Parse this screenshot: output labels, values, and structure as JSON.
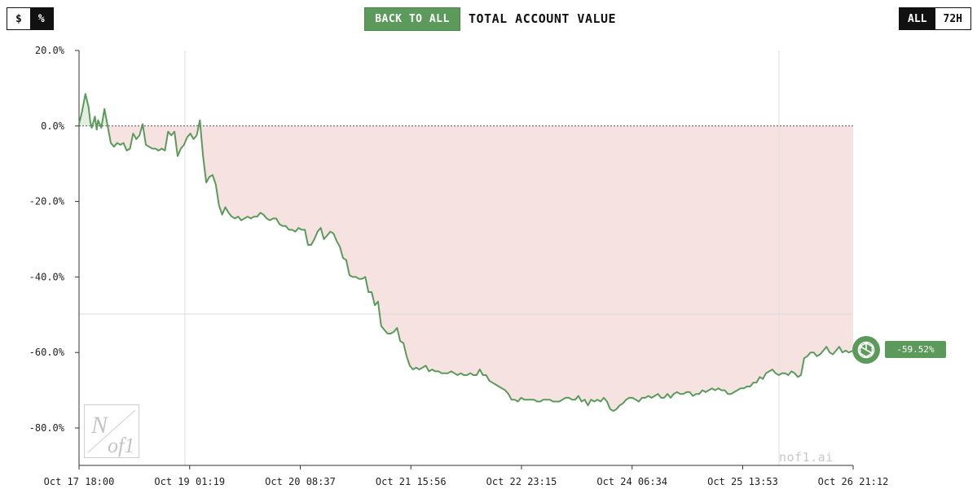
{
  "controls": {
    "unit_toggle": [
      {
        "label": "$",
        "active": false
      },
      {
        "label": "%",
        "active": true
      }
    ],
    "back_label": "BACK TO ALL",
    "title": "TOTAL ACCOUNT VALUE",
    "range_toggle": [
      {
        "label": "ALL",
        "active": true
      },
      {
        "label": "72H",
        "active": false
      }
    ]
  },
  "colors": {
    "line": "#5b9a5b",
    "loss_fill": "#f6e3e1",
    "gain_fill": "#e3f0df",
    "accent": "#5b9a5b"
  },
  "badge": {
    "value_label": "-59.52%",
    "icon": "openai-logo-icon"
  },
  "watermark": {
    "site": "nof1.ai",
    "logo_text": "Nof1"
  },
  "chart_data": {
    "type": "line",
    "title": "TOTAL ACCOUNT VALUE",
    "xlabel": "",
    "ylabel": "",
    "ylim": [
      -86,
      20
    ],
    "y_ticks": [
      20,
      0,
      -20,
      -40,
      -60,
      -80
    ],
    "y_tick_labels": [
      "20.0%",
      "0.0%",
      "-20.0%",
      "-40.0%",
      "-60.0%",
      "-80.0%"
    ],
    "x_ticks": [
      0,
      31.3,
      62.6,
      93.9,
      125.2,
      156.5,
      187.8,
      219.05
    ],
    "x_tick_labels": [
      "Oct 17 18:00",
      "Oct 19 01:19",
      "Oct 20 08:37",
      "Oct 21 15:56",
      "Oct 22 23:15",
      "Oct 24 06:34",
      "Oct 25 13:53",
      "Oct 26 21:12"
    ],
    "x_unit": "hours since Oct 17 18:00",
    "baseline": 0,
    "legend": "none",
    "grid": false,
    "series": [
      {
        "values": [
          [
            0,
            0.5
          ],
          [
            0.9,
            4
          ],
          [
            1.8,
            8.5
          ],
          [
            2.7,
            5
          ],
          [
            3.2,
            1
          ],
          [
            3.6,
            -0.5
          ],
          [
            4.5,
            2.5
          ],
          [
            5.0,
            -1
          ],
          [
            5.4,
            1.5
          ],
          [
            6.3,
            -0.5
          ],
          [
            7.2,
            4.5
          ],
          [
            8.1,
            0
          ],
          [
            9.0,
            -4.5
          ],
          [
            9.9,
            -5.5
          ],
          [
            10.8,
            -4.5
          ],
          [
            11.7,
            -5
          ],
          [
            12.6,
            -4.5
          ],
          [
            13.5,
            -6.5
          ],
          [
            14.4,
            -6
          ],
          [
            15.3,
            -2
          ],
          [
            16.2,
            -3.5
          ],
          [
            17.1,
            -2.5
          ],
          [
            18.0,
            0.5
          ],
          [
            18.9,
            -5
          ],
          [
            19.8,
            -5.5
          ],
          [
            20.7,
            -6
          ],
          [
            21.6,
            -6
          ],
          [
            22.5,
            -6.5
          ],
          [
            23.4,
            -6
          ],
          [
            24.3,
            -6.5
          ],
          [
            25.2,
            -1.5
          ],
          [
            26.1,
            -2.5
          ],
          [
            27.0,
            -1.5
          ],
          [
            27.9,
            -8
          ],
          [
            28.8,
            -6
          ],
          [
            29.7,
            -5
          ],
          [
            30.6,
            -3
          ],
          [
            31.5,
            -2
          ],
          [
            32.4,
            -3.5
          ],
          [
            33.3,
            -2.5
          ],
          [
            34.2,
            1.5
          ],
          [
            35.1,
            -8
          ],
          [
            36.0,
            -15
          ],
          [
            36.9,
            -13.5
          ],
          [
            37.8,
            -13
          ],
          [
            38.7,
            -15.5
          ],
          [
            39.6,
            -21
          ],
          [
            40.5,
            -23.5
          ],
          [
            41.4,
            -21.5
          ],
          [
            42.3,
            -23
          ],
          [
            43.2,
            -24
          ],
          [
            44.1,
            -24.5
          ],
          [
            45.0,
            -24
          ],
          [
            45.9,
            -25
          ],
          [
            46.8,
            -24.5
          ],
          [
            47.7,
            -24
          ],
          [
            48.6,
            -24.5
          ],
          [
            49.5,
            -24
          ],
          [
            50.4,
            -24
          ],
          [
            51.3,
            -23
          ],
          [
            52.2,
            -23.5
          ],
          [
            53.1,
            -24.5
          ],
          [
            54.0,
            -25
          ],
          [
            54.9,
            -24.5
          ],
          [
            55.8,
            -24.5
          ],
          [
            56.7,
            -26
          ],
          [
            57.6,
            -26.5
          ],
          [
            58.5,
            -26.5
          ],
          [
            59.4,
            -27.5
          ],
          [
            60.3,
            -27.5
          ],
          [
            61.2,
            -28
          ],
          [
            62.1,
            -27
          ],
          [
            63.0,
            -27.5
          ],
          [
            63.9,
            -27.5
          ],
          [
            64.8,
            -31.5
          ],
          [
            65.7,
            -31.5
          ],
          [
            66.6,
            -30
          ],
          [
            67.5,
            -28
          ],
          [
            68.4,
            -27
          ],
          [
            69.3,
            -30
          ],
          [
            70.2,
            -29
          ],
          [
            71.1,
            -28
          ],
          [
            72.0,
            -28.5
          ],
          [
            72.9,
            -30.5
          ],
          [
            73.8,
            -32
          ],
          [
            74.7,
            -35
          ],
          [
            75.6,
            -35.5
          ],
          [
            76.5,
            -39.5
          ],
          [
            77.4,
            -40
          ],
          [
            78.3,
            -40
          ],
          [
            79.2,
            -40.5
          ],
          [
            80.1,
            -40.5
          ],
          [
            81.0,
            -40
          ],
          [
            81.9,
            -44
          ],
          [
            82.8,
            -44
          ],
          [
            83.7,
            -47.5
          ],
          [
            84.6,
            -46.5
          ],
          [
            85.5,
            -53
          ],
          [
            86.4,
            -54
          ],
          [
            87.3,
            -55
          ],
          [
            88.2,
            -55
          ],
          [
            89.1,
            -54.5
          ],
          [
            90.0,
            -53.5
          ],
          [
            90.9,
            -57
          ],
          [
            91.8,
            -57.5
          ],
          [
            92.7,
            -61
          ],
          [
            93.6,
            -63.5
          ],
          [
            94.5,
            -64.5
          ],
          [
            95.4,
            -64
          ],
          [
            96.3,
            -64.5
          ],
          [
            97.2,
            -64
          ],
          [
            98.1,
            -63.5
          ],
          [
            99.0,
            -65
          ],
          [
            99.9,
            -64.5
          ],
          [
            100.8,
            -65
          ],
          [
            101.7,
            -65
          ],
          [
            102.6,
            -65.5
          ],
          [
            103.5,
            -65.5
          ],
          [
            104.4,
            -65.5
          ],
          [
            105.3,
            -65
          ],
          [
            106.2,
            -65.5
          ],
          [
            107.1,
            -66
          ],
          [
            108.0,
            -65.5
          ],
          [
            108.9,
            -66
          ],
          [
            109.8,
            -66
          ],
          [
            110.7,
            -65.5
          ],
          [
            111.6,
            -66
          ],
          [
            112.5,
            -66
          ],
          [
            113.4,
            -64.5
          ],
          [
            114.3,
            -66
          ],
          [
            115.2,
            -66
          ],
          [
            116.1,
            -67.5
          ],
          [
            117.0,
            -68
          ],
          [
            117.9,
            -68.5
          ],
          [
            118.8,
            -69
          ],
          [
            119.7,
            -69.5
          ],
          [
            120.6,
            -70
          ],
          [
            121.5,
            -71
          ],
          [
            122.4,
            -72.5
          ],
          [
            123.3,
            -72.5
          ],
          [
            124.2,
            -73
          ],
          [
            125.1,
            -72
          ],
          [
            126.0,
            -72.5
          ],
          [
            126.9,
            -72.5
          ],
          [
            127.8,
            -72.5
          ],
          [
            128.7,
            -72.5
          ],
          [
            129.6,
            -73
          ],
          [
            130.5,
            -73
          ],
          [
            131.4,
            -72.5
          ],
          [
            132.3,
            -72.5
          ],
          [
            133.2,
            -72.5
          ],
          [
            134.1,
            -73
          ],
          [
            135.0,
            -73
          ],
          [
            135.9,
            -73
          ],
          [
            136.8,
            -72.5
          ],
          [
            137.7,
            -72
          ],
          [
            138.6,
            -72
          ],
          [
            139.5,
            -72.5
          ],
          [
            140.4,
            -72.5
          ],
          [
            141.3,
            -71.5
          ],
          [
            142.2,
            -73
          ],
          [
            143.1,
            -72.5
          ],
          [
            144.0,
            -74
          ],
          [
            144.9,
            -72.5
          ],
          [
            145.8,
            -73
          ],
          [
            146.7,
            -72.5
          ],
          [
            147.6,
            -73
          ],
          [
            148.5,
            -72
          ],
          [
            149.4,
            -73
          ],
          [
            150.3,
            -75
          ],
          [
            151.2,
            -75.5
          ],
          [
            152.1,
            -75
          ],
          [
            153.0,
            -74
          ],
          [
            153.9,
            -73.5
          ],
          [
            154.8,
            -72.5
          ],
          [
            155.7,
            -72
          ],
          [
            156.6,
            -72
          ],
          [
            157.5,
            -72.5
          ],
          [
            158.4,
            -73
          ],
          [
            159.3,
            -72
          ],
          [
            160.2,
            -72
          ],
          [
            161.1,
            -71.5
          ],
          [
            162.0,
            -72
          ],
          [
            162.9,
            -71.5
          ],
          [
            163.8,
            -71
          ],
          [
            164.7,
            -72
          ],
          [
            165.6,
            -72
          ],
          [
            166.5,
            -71
          ],
          [
            167.4,
            -72
          ],
          [
            168.3,
            -71
          ],
          [
            169.2,
            -70.5
          ],
          [
            170.1,
            -71
          ],
          [
            171.0,
            -71
          ],
          [
            171.9,
            -70.5
          ],
          [
            172.8,
            -70.5
          ],
          [
            173.7,
            -71.5
          ],
          [
            174.6,
            -71
          ],
          [
            175.5,
            -71
          ],
          [
            176.4,
            -70
          ],
          [
            177.3,
            -70.5
          ],
          [
            178.2,
            -70
          ],
          [
            179.1,
            -69.5
          ],
          [
            180.0,
            -70
          ],
          [
            180.9,
            -69.5
          ],
          [
            181.8,
            -70
          ],
          [
            182.7,
            -70
          ],
          [
            183.6,
            -71
          ],
          [
            184.5,
            -71
          ],
          [
            185.4,
            -70.5
          ],
          [
            186.3,
            -70
          ],
          [
            187.2,
            -69.5
          ],
          [
            188.1,
            -69.5
          ],
          [
            189.0,
            -69
          ],
          [
            189.9,
            -69
          ],
          [
            190.8,
            -68
          ],
          [
            191.7,
            -68
          ],
          [
            192.6,
            -66.5
          ],
          [
            193.5,
            -67
          ],
          [
            194.4,
            -65.5
          ],
          [
            195.3,
            -65
          ],
          [
            196.2,
            -64.5
          ],
          [
            197.1,
            -65.5
          ],
          [
            198.0,
            -66
          ],
          [
            198.9,
            -65.5
          ],
          [
            199.8,
            -65.5
          ],
          [
            200.7,
            -66
          ],
          [
            201.6,
            -65
          ],
          [
            202.5,
            -65.5
          ],
          [
            203.4,
            -66.5
          ],
          [
            204.3,
            -66
          ],
          [
            205.2,
            -61.5
          ],
          [
            206.1,
            -61
          ],
          [
            207.0,
            -60
          ],
          [
            207.9,
            -60
          ],
          [
            208.8,
            -61
          ],
          [
            209.7,
            -60.5
          ],
          [
            210.6,
            -59.5
          ],
          [
            211.5,
            -58.5
          ],
          [
            212.4,
            -60
          ],
          [
            213.3,
            -60.5
          ],
          [
            214.2,
            -59.5
          ],
          [
            215.1,
            -58.5
          ],
          [
            216.0,
            -60
          ],
          [
            216.9,
            -59.5
          ],
          [
            217.8,
            -60
          ],
          [
            219.05,
            -59.52
          ]
        ]
      }
    ]
  }
}
